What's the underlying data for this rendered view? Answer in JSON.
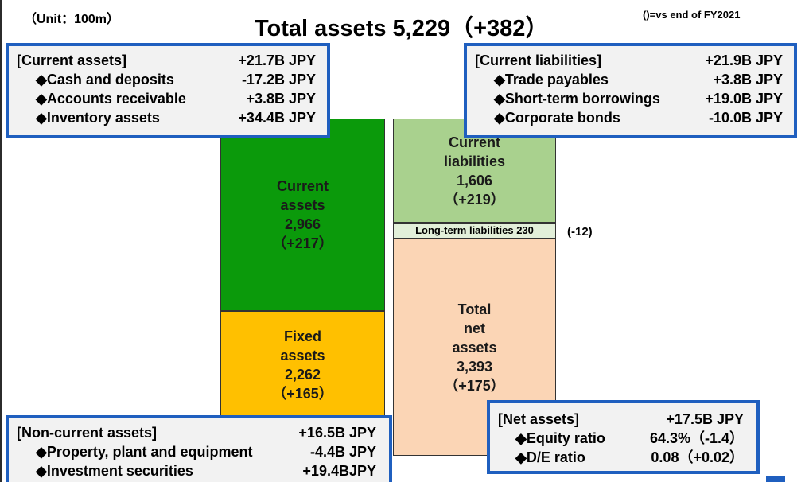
{
  "header": {
    "unit": "（Unit：100m）",
    "title": "Total assets 5,229（+382）",
    "note": "()=vs end of FY2021"
  },
  "blocks": {
    "current_assets": {
      "label1": "Current",
      "label2": "assets",
      "value": "2,966",
      "change": "（+217）",
      "color": "#0b9a0b"
    },
    "fixed_assets": {
      "label1": "Fixed",
      "label2": "assets",
      "value": "2,262",
      "change": "（+165）",
      "color": "#ffc000"
    },
    "current_liabilities": {
      "label1": "Current",
      "label2": "liabilities",
      "value": "1,606",
      "change": "（+219）",
      "color": "#a9d18e"
    },
    "long_term_liabilities": {
      "label": "Long-term liabilities  230",
      "change": "(-12)"
    },
    "net_assets": {
      "label1": "Total",
      "label2": "net",
      "label3": "assets",
      "value": "3,393",
      "change": "（+175）",
      "color": "#fbd5b5"
    }
  },
  "boxes": {
    "current_assets": {
      "header": {
        "label": "[Current assets]",
        "value": "+21.7B JPY"
      },
      "items": [
        {
          "label": "◆Cash and deposits",
          "value": "-17.2B JPY"
        },
        {
          "label": "◆Accounts receivable",
          "value": "+3.8B JPY"
        },
        {
          "label": "◆Inventory assets",
          "value": "+34.4B JPY"
        }
      ]
    },
    "current_liabilities": {
      "header": {
        "label": "[Current liabilities]",
        "value": "+21.9B JPY"
      },
      "items": [
        {
          "label": "◆Trade payables",
          "value": "+3.8B JPY"
        },
        {
          "label": "◆Short-term borrowings",
          "value": "+19.0B JPY"
        },
        {
          "label": "◆Corporate bonds",
          "value": "-10.0B JPY"
        }
      ]
    },
    "non_current_assets": {
      "header": {
        "label": "[Non-current assets]",
        "value": "+16.5B JPY"
      },
      "items": [
        {
          "label": "◆Property, plant and equipment",
          "value": "-4.4B JPY"
        },
        {
          "label": "◆Investment securities",
          "value": "+19.4BJPY"
        }
      ]
    },
    "net_assets": {
      "header": {
        "label": "[Net assets]",
        "value": "+17.5B JPY"
      },
      "items": [
        {
          "label": "◆Equity ratio",
          "value": "64.3%（-1.4）"
        },
        {
          "label": "◆D/E ratio",
          "value": "0.08（+0.02）"
        }
      ]
    }
  },
  "colors": {
    "box_border": "#1f5fbf",
    "box_bg": "#f2f2f2"
  }
}
